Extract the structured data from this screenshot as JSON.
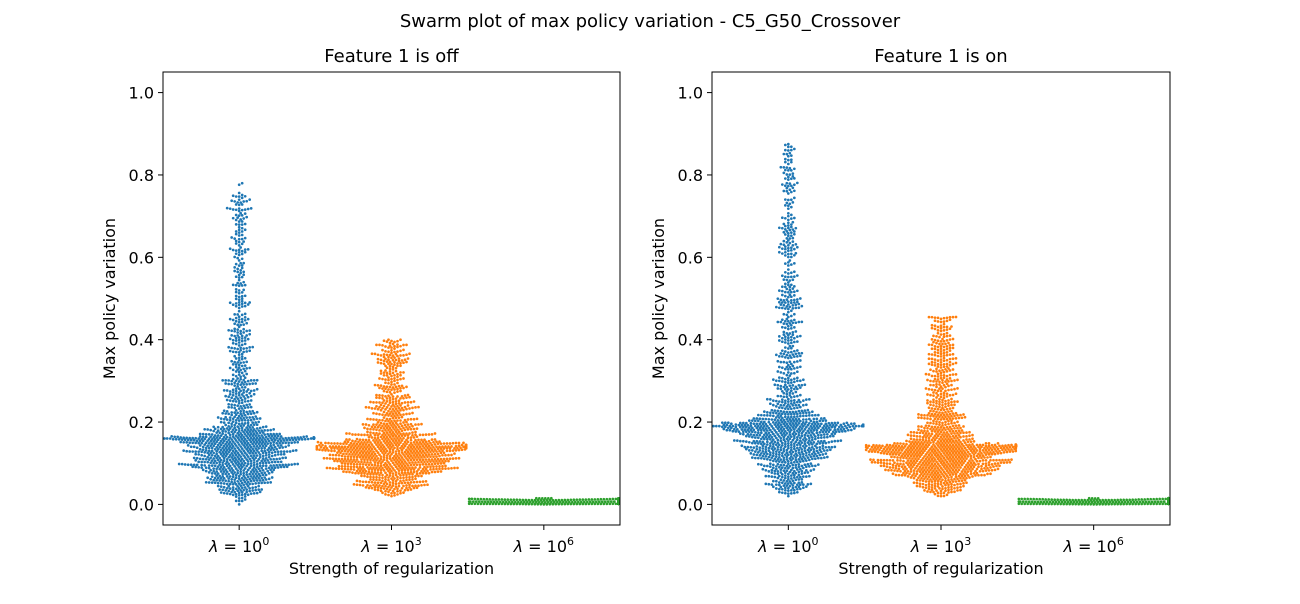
{
  "figure": {
    "suptitle": "Swarm plot of max policy variation - C5_G50_Crossover"
  },
  "chart_data": [
    {
      "type": "swarm",
      "title": "Feature 1 is off",
      "xlabel": "Strength of regularization",
      "ylabel": "Max policy variation",
      "ylim": [
        -0.05,
        1.05
      ],
      "yticks": [
        0.0,
        0.2,
        0.4,
        0.6,
        0.8,
        1.0
      ],
      "ytick_labels": [
        "0.0",
        "0.2",
        "0.4",
        "0.6",
        "0.8",
        "1.0"
      ],
      "categories": [
        {
          "base": "λ = 10",
          "exp": "0"
        },
        {
          "base": "λ = 10",
          "exp": "3"
        },
        {
          "base": "λ = 10",
          "exp": "6"
        }
      ],
      "series": [
        {
          "name": "λ = 10^0",
          "color": "#1f77b4",
          "n": 1200,
          "min": 0.0,
          "max": 0.78,
          "median": 0.16,
          "mode": 0.16
        },
        {
          "name": "λ = 10^3",
          "color": "#ff7f0e",
          "n": 1200,
          "min": 0.02,
          "max": 0.4,
          "median": 0.14,
          "mode": 0.14
        },
        {
          "name": "λ = 10^6",
          "color": "#2ca02c",
          "n": 600,
          "min": 0.0,
          "max": 0.015,
          "median": 0.004,
          "mode": 0.004
        }
      ]
    },
    {
      "type": "swarm",
      "title": "Feature 1 is on",
      "xlabel": "Strength of regularization",
      "ylabel": "Max policy variation",
      "ylim": [
        -0.05,
        1.05
      ],
      "yticks": [
        0.0,
        0.2,
        0.4,
        0.6,
        0.8,
        1.0
      ],
      "ytick_labels": [
        "0.0",
        "0.2",
        "0.4",
        "0.6",
        "0.8",
        "1.0"
      ],
      "categories": [
        {
          "base": "λ = 10",
          "exp": "0"
        },
        {
          "base": "λ = 10",
          "exp": "3"
        },
        {
          "base": "λ = 10",
          "exp": "6"
        }
      ],
      "series": [
        {
          "name": "λ = 10^0",
          "color": "#1f77b4",
          "n": 1200,
          "min": 0.02,
          "max": 0.875,
          "median": 0.19,
          "mode": 0.14
        },
        {
          "name": "λ = 10^3",
          "color": "#ff7f0e",
          "n": 1200,
          "min": 0.02,
          "max": 0.455,
          "median": 0.14,
          "mode": 0.14
        },
        {
          "name": "λ = 10^6",
          "color": "#2ca02c",
          "n": 600,
          "min": 0.0,
          "max": 0.015,
          "median": 0.004,
          "mode": 0.004
        }
      ]
    }
  ]
}
